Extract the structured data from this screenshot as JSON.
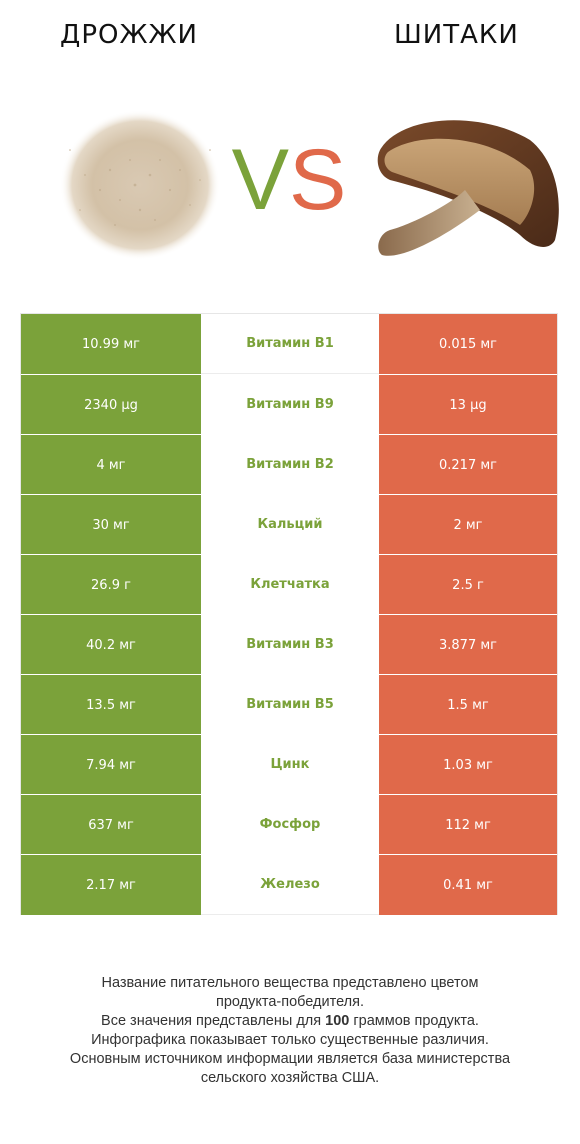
{
  "header": {
    "left_title": "ДРОЖЖИ",
    "right_title": "ШИТАКИ",
    "vs_v": "V",
    "vs_s": "S"
  },
  "colors": {
    "winner_left": "#7ba23a",
    "winner_right": "#e0694a"
  },
  "rows": [
    {
      "left": "10.99 мг",
      "nutrient": "Витамин B1",
      "right": "0.015 мг"
    },
    {
      "left": "2340 µg",
      "nutrient": "Витамин B9",
      "right": "13 µg"
    },
    {
      "left": "4 мг",
      "nutrient": "Витамин B2",
      "right": "0.217 мг"
    },
    {
      "left": "30 мг",
      "nutrient": "Кальций",
      "right": "2 мг"
    },
    {
      "left": "26.9 г",
      "nutrient": "Клетчатка",
      "right": "2.5 г"
    },
    {
      "left": "40.2 мг",
      "nutrient": "Витамин B3",
      "right": "3.877 мг"
    },
    {
      "left": "13.5 мг",
      "nutrient": "Витамин B5",
      "right": "1.5 мг"
    },
    {
      "left": "7.94 мг",
      "nutrient": "Цинк",
      "right": "1.03 мг"
    },
    {
      "left": "637 мг",
      "nutrient": "Фосфор",
      "right": "112 мг"
    },
    {
      "left": "2.17 мг",
      "nutrient": "Железо",
      "right": "0.41 мг"
    }
  ],
  "footer": {
    "line1": "Название питательного вещества представлено цветом",
    "line2": "продукта-победителя.",
    "line3a": "Все значения представлены для ",
    "line3b": "100",
    "line3c": " граммов продукта.",
    "line4": "Инфографика показывает только существенные различия.",
    "line5": "Основным источником информации является база министерства",
    "line6": "сельского хозяйства США."
  }
}
